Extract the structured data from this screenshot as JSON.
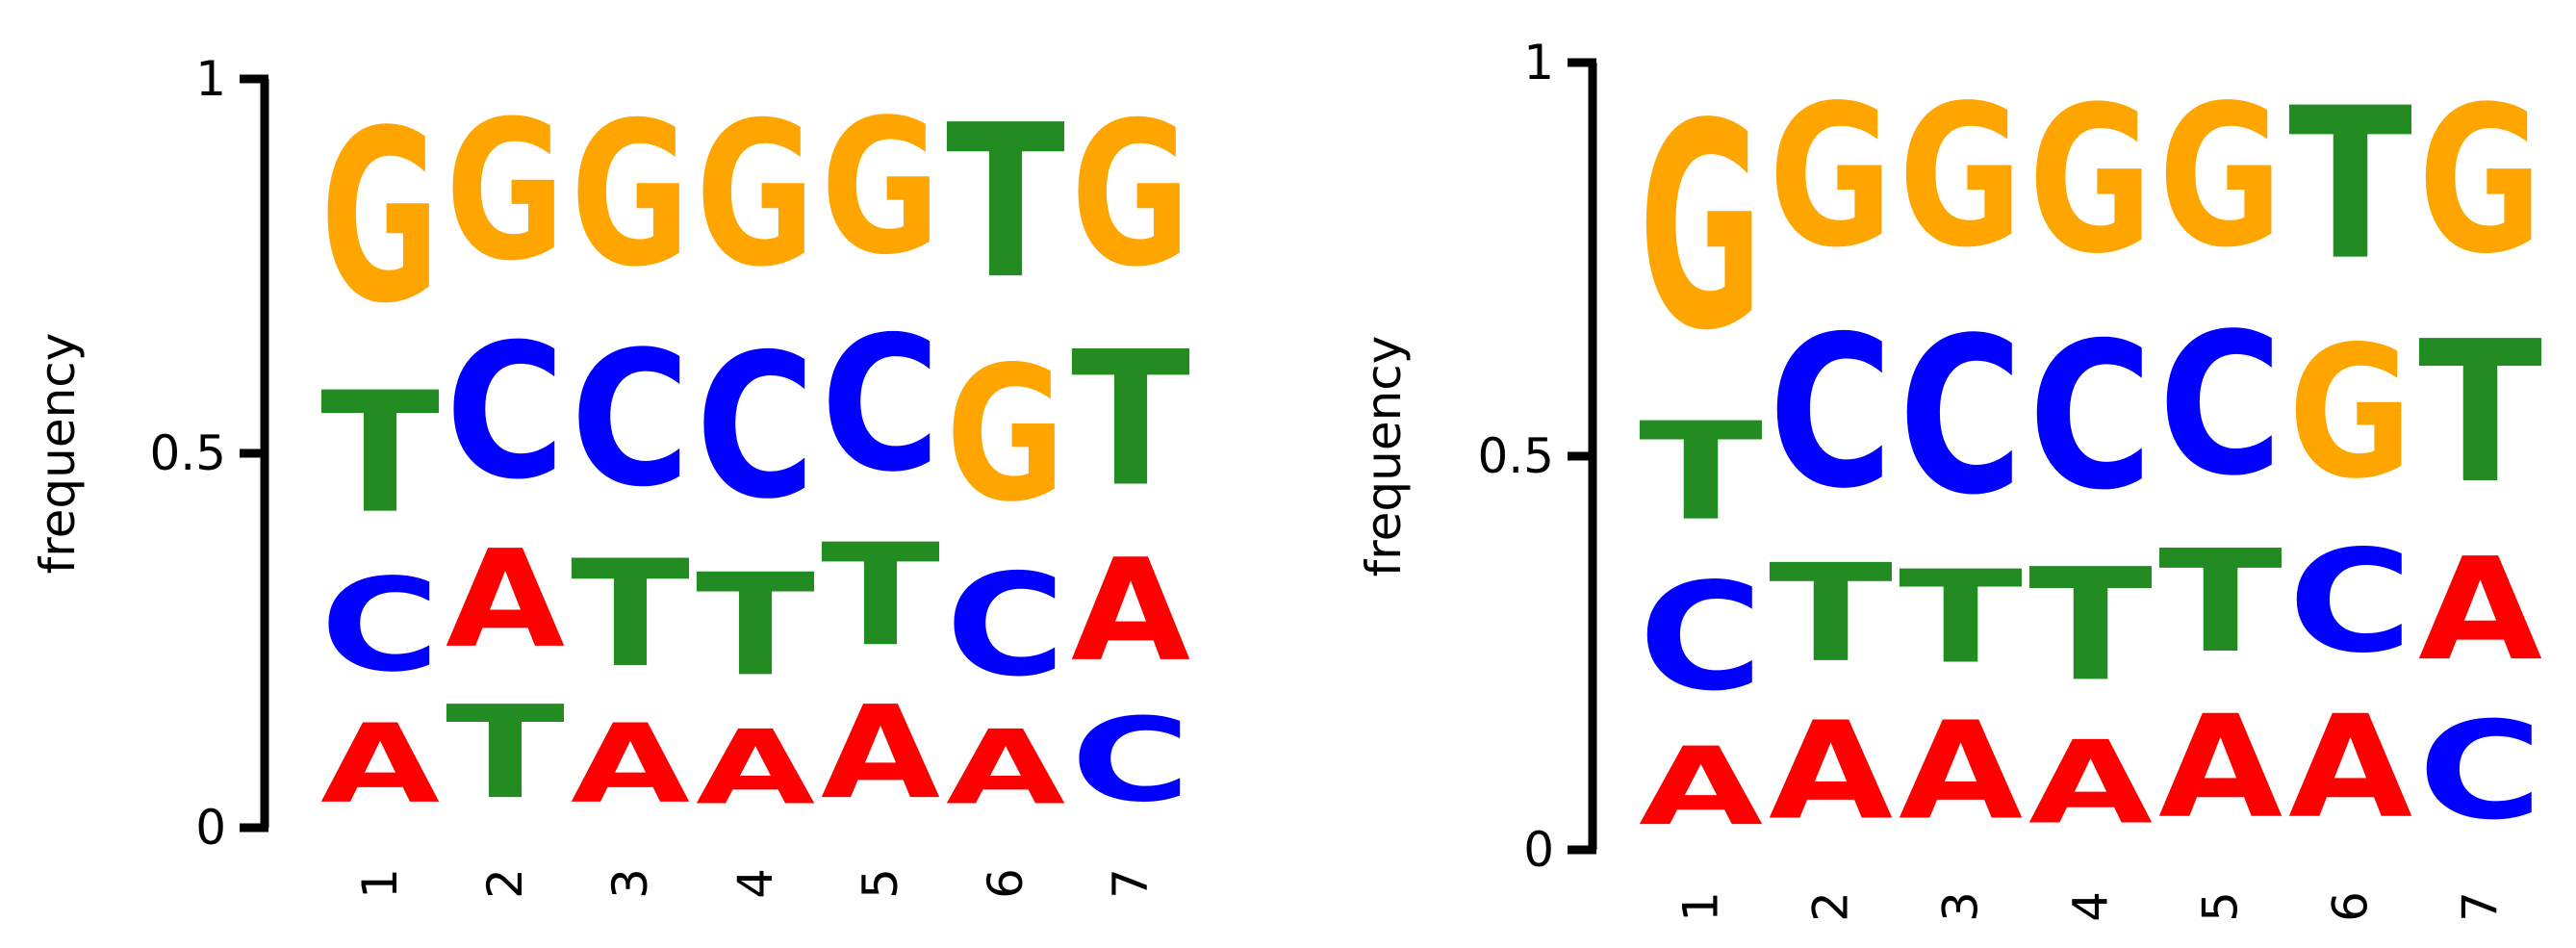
{
  "colors": {
    "A": "#ff0000",
    "C": "#0000ff",
    "G": "#ffa500",
    "T": "#228b22"
  },
  "chart_data": [
    {
      "type": "sequence-logo",
      "ylabel": "frequency",
      "ylim": [
        0,
        1
      ],
      "yticks": [
        "0",
        "0.5",
        "1"
      ],
      "categories": [
        "1",
        "2",
        "3",
        "4",
        "5",
        "6",
        "7"
      ],
      "columns": [
        [
          {
            "letter": "A",
            "value": 0.17
          },
          {
            "letter": "C",
            "value": 0.2
          },
          {
            "letter": "T",
            "value": 0.26
          },
          {
            "letter": "G",
            "value": 0.37
          }
        ],
        [
          {
            "letter": "T",
            "value": 0.2
          },
          {
            "letter": "A",
            "value": 0.21
          },
          {
            "letter": "C",
            "value": 0.29
          },
          {
            "letter": "G",
            "value": 0.3
          }
        ],
        [
          {
            "letter": "A",
            "value": 0.17
          },
          {
            "letter": "T",
            "value": 0.23
          },
          {
            "letter": "C",
            "value": 0.29
          },
          {
            "letter": "G",
            "value": 0.31
          }
        ],
        [
          {
            "letter": "A",
            "value": 0.16
          },
          {
            "letter": "T",
            "value": 0.22
          },
          {
            "letter": "C",
            "value": 0.31
          },
          {
            "letter": "G",
            "value": 0.31
          }
        ],
        [
          {
            "letter": "A",
            "value": 0.2
          },
          {
            "letter": "T",
            "value": 0.22
          },
          {
            "letter": "C",
            "value": 0.29
          },
          {
            "letter": "G",
            "value": 0.29
          }
        ],
        [
          {
            "letter": "A",
            "value": 0.16
          },
          {
            "letter": "C",
            "value": 0.22
          },
          {
            "letter": "G",
            "value": 0.29
          },
          {
            "letter": "T",
            "value": 0.33
          }
        ],
        [
          {
            "letter": "C",
            "value": 0.18
          },
          {
            "letter": "A",
            "value": 0.22
          },
          {
            "letter": "T",
            "value": 0.29
          },
          {
            "letter": "G",
            "value": 0.31
          }
        ]
      ]
    },
    {
      "type": "sequence-logo",
      "ylabel": "frequency",
      "ylim": [
        0,
        1
      ],
      "yticks": [
        "0",
        "0.5",
        "1"
      ],
      "categories": [
        "1",
        "2",
        "3",
        "4",
        "5",
        "6",
        "7"
      ],
      "columns": [
        [
          {
            "letter": "A",
            "value": 0.16
          },
          {
            "letter": "C",
            "value": 0.22
          },
          {
            "letter": "T",
            "value": 0.2
          },
          {
            "letter": "G",
            "value": 0.42
          }
        ],
        [
          {
            "letter": "A",
            "value": 0.2
          },
          {
            "letter": "T",
            "value": 0.2
          },
          {
            "letter": "C",
            "value": 0.31
          },
          {
            "letter": "G",
            "value": 0.29
          }
        ],
        [
          {
            "letter": "A",
            "value": 0.2
          },
          {
            "letter": "T",
            "value": 0.19
          },
          {
            "letter": "C",
            "value": 0.32
          },
          {
            "letter": "G",
            "value": 0.29
          }
        ],
        [
          {
            "letter": "A",
            "value": 0.17
          },
          {
            "letter": "T",
            "value": 0.23
          },
          {
            "letter": "C",
            "value": 0.3
          },
          {
            "letter": "G",
            "value": 0.3
          }
        ],
        [
          {
            "letter": "A",
            "value": 0.21
          },
          {
            "letter": "T",
            "value": 0.21
          },
          {
            "letter": "C",
            "value": 0.29
          },
          {
            "letter": "G",
            "value": 0.29
          }
        ],
        [
          {
            "letter": "A",
            "value": 0.21
          },
          {
            "letter": "C",
            "value": 0.21
          },
          {
            "letter": "G",
            "value": 0.27
          },
          {
            "letter": "T",
            "value": 0.31
          }
        ],
        [
          {
            "letter": "C",
            "value": 0.2
          },
          {
            "letter": "A",
            "value": 0.21
          },
          {
            "letter": "T",
            "value": 0.29
          },
          {
            "letter": "G",
            "value": 0.3
          }
        ]
      ]
    }
  ]
}
